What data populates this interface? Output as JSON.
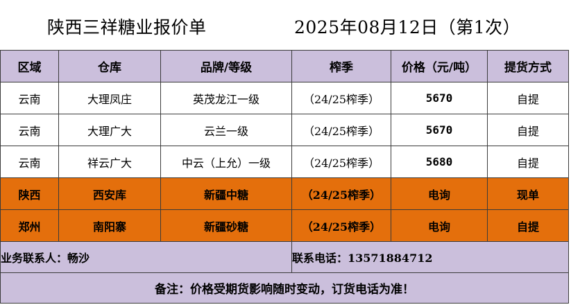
{
  "title": {
    "company": "陕西三祥糖业报价单",
    "date": "2025年08月12日（第1次）"
  },
  "columns": [
    "区域",
    "仓库",
    "品牌/等级",
    "榨季",
    "价格（元/吨）",
    "提货方式"
  ],
  "rows": [
    {
      "region": "云南",
      "warehouse": "大理凤庄",
      "brand": "英茂龙江一级",
      "season": "（24/25榨季）",
      "price": "5670",
      "pickup": "自提",
      "highlight": false
    },
    {
      "region": "云南",
      "warehouse": "大理广大",
      "brand": "云兰一级",
      "season": "（24/25榨季）",
      "price": "5670",
      "pickup": "自提",
      "highlight": false
    },
    {
      "region": "云南",
      "warehouse": "祥云广大",
      "brand": "中云（上允）一级",
      "season": "（24/25榨季）",
      "price": "5680",
      "pickup": "自提",
      "highlight": false
    },
    {
      "region": "陕西",
      "warehouse": "西安库",
      "brand": "新疆中糖",
      "season": "（24/25榨季）",
      "price": "电询",
      "pickup": "现单",
      "highlight": true
    },
    {
      "region": "郑州",
      "warehouse": "南阳寨",
      "brand": "新疆砂糖",
      "season": "（24/25榨季）",
      "price": "电询",
      "pickup": "自提",
      "highlight": true
    }
  ],
  "contact": {
    "person": "业务联系人：畅沙",
    "phone": "联系电话：13571884712"
  },
  "note": "备注：价格受期货影响随时变动，订货电话为准！",
  "colors": {
    "header_bg": "#cbbfdc",
    "highlight_bg": "#e46f0c"
  }
}
